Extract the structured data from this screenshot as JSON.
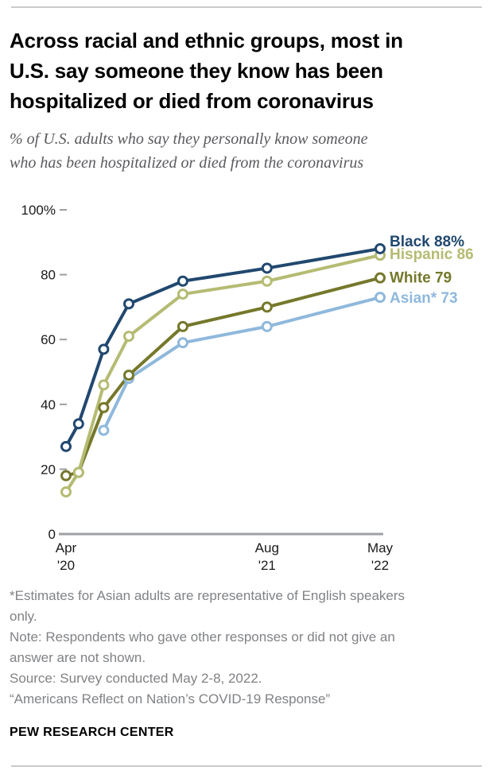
{
  "header": {
    "title": "Across racial and ethnic groups, most in\nU.S. say someone they know has been\nhospitalized or died from coronavirus",
    "subtitle": "% of U.S. adults who say they personally know someone\nwho has been hospitalized or died from the coronavirus"
  },
  "chart_data": {
    "type": "line",
    "x_unit_note": "survey waves, months since Apr 2020",
    "x": [
      0,
      1,
      3,
      5,
      9.3,
      16,
      25
    ],
    "x_tick_labels": [
      {
        "pos": 0,
        "line1": "Apr",
        "line2": "'20"
      },
      {
        "pos": 16,
        "line1": "Aug",
        "line2": "'21"
      },
      {
        "pos": 25,
        "line1": "May",
        "line2": "'22"
      }
    ],
    "ylim": [
      0,
      100
    ],
    "y_ticks": [
      {
        "value": 0,
        "label": "0"
      },
      {
        "value": 20,
        "label": "20"
      },
      {
        "value": 40,
        "label": "40"
      },
      {
        "value": 60,
        "label": "60"
      },
      {
        "value": 80,
        "label": "80"
      },
      {
        "value": 100,
        "label": "100%"
      }
    ],
    "grid": false,
    "legend_position": "right-end-labels",
    "axis_color": "#9d9fa2",
    "marker_fill": "#ffffff",
    "series": [
      {
        "id": "asian",
        "name": "Asian*",
        "end_label": "Asian* 73",
        "color": "#8fb8dc",
        "values": [
          null,
          null,
          32,
          48,
          59,
          64,
          73
        ]
      },
      {
        "id": "white",
        "name": "White",
        "end_label": "White 79",
        "color": "#75782b",
        "values": [
          18,
          19,
          39,
          49,
          64,
          70,
          79
        ]
      },
      {
        "id": "hispanic",
        "name": "Hispanic",
        "end_label": "Hispanic 86",
        "color": "#b5bb72",
        "values": [
          13,
          19,
          46,
          61,
          74,
          78,
          86
        ]
      },
      {
        "id": "black",
        "name": "Black",
        "end_label": "Black 88%",
        "color": "#21486f",
        "values": [
          27,
          34,
          57,
          71,
          78,
          82,
          88
        ]
      }
    ]
  },
  "footer": {
    "asterisk_note": "*Estimates for Asian adults are representative of English speakers\nonly.",
    "note": "Note: Respondents who gave other responses or did not give an\nanswer are not shown.",
    "source": "Source: Survey conducted May 2-8, 2022.",
    "report_title": "“Americans Reflect on Nation’s COVID-19 Response”",
    "brand": "PEW RESEARCH CENTER"
  }
}
